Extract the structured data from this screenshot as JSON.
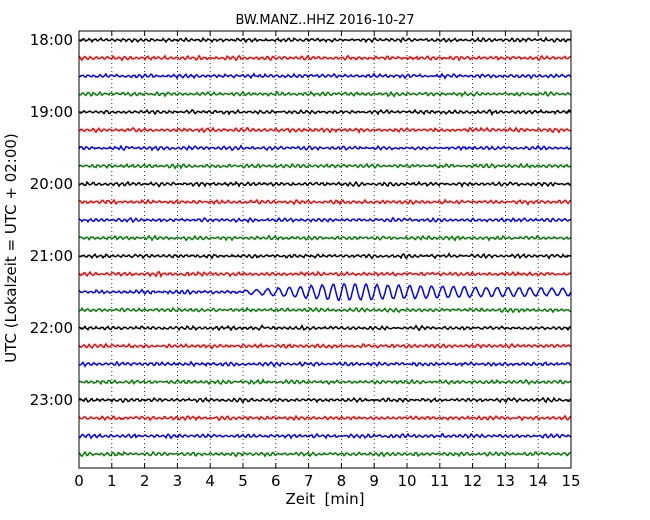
{
  "chart_data": {
    "type": "line",
    "title": "BW.MANZ..HHZ 2016-10-27",
    "xlabel": "Zeit  [min]",
    "ylabel": "UTC (Lokalzeit = UTC + 02:00)",
    "xlim": [
      0,
      15
    ],
    "x_ticks": [
      "0",
      "1",
      "2",
      "3",
      "4",
      "5",
      "6",
      "7",
      "8",
      "9",
      "10",
      "11",
      "12",
      "13",
      "14",
      "15"
    ],
    "y_ticks": [
      "18:00",
      "19:00",
      "20:00",
      "21:00",
      "22:00",
      "23:00"
    ],
    "grid": "vertical dotted",
    "trace_colors": [
      "#000000",
      "#ff0000",
      "#0000ff",
      "#007f00"
    ],
    "trace_start_times": [
      "18:00",
      "18:15",
      "18:30",
      "18:45",
      "19:00",
      "19:15",
      "19:30",
      "19:45",
      "20:00",
      "20:15",
      "20:30",
      "20:45",
      "21:00",
      "21:15",
      "21:30",
      "21:45",
      "22:00",
      "22:15",
      "22:30",
      "22:45",
      "23:00",
      "23:15",
      "23:30",
      "23:45"
    ],
    "event": {
      "trace_start": "21:30",
      "onset_min": 5.0,
      "peak_min": 8.0,
      "end_min": 15.0,
      "note": "larger-amplitude wave train"
    }
  }
}
